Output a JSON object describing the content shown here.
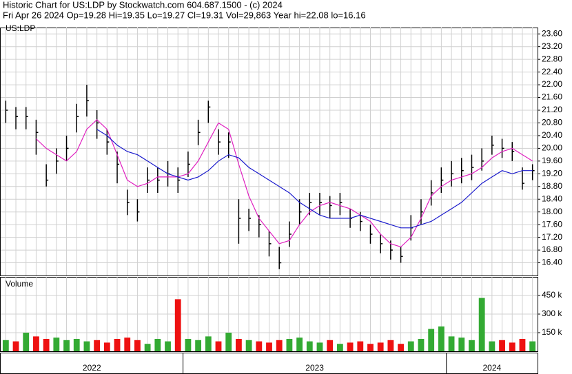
{
  "chart_data": {
    "type": "ohlc",
    "title": "Historic Chart for US:LDP by Stockwatch.com 604.687.1500 - (c) 2024",
    "subtitle": "Fri Apr 26 2024  Op=19.28  Hi=19.35  Lo=19.27  Cl=19.31  Vol=29,863  Year hi=22.08  lo=16.16",
    "symbol": "US:LDP",
    "volume_label": "Volume",
    "ylim": [
      16.0,
      23.8
    ],
    "yticks": [
      {
        "value": 16.4,
        "label": "16.40"
      },
      {
        "value": 16.8,
        "label": "16.80"
      },
      {
        "value": 17.2,
        "label": "17.20"
      },
      {
        "value": 17.6,
        "label": "17.60"
      },
      {
        "value": 18,
        "label": "18.00"
      },
      {
        "value": 18.4,
        "label": "18.40"
      },
      {
        "value": 18.8,
        "label": "18.80"
      },
      {
        "value": 19.2,
        "label": "19.20"
      },
      {
        "value": 19.6,
        "label": "19.60"
      },
      {
        "value": 20,
        "label": "20.00"
      },
      {
        "value": 20.4,
        "label": "20.40"
      },
      {
        "value": 20.8,
        "label": "20.80"
      },
      {
        "value": 21.2,
        "label": "21.20"
      },
      {
        "value": 21.6,
        "label": "21.60"
      },
      {
        "value": 22,
        "label": "22.00"
      },
      {
        "value": 22.4,
        "label": "22.40"
      },
      {
        "value": 22.8,
        "label": "22.80"
      },
      {
        "value": 23.2,
        "label": "23.20"
      },
      {
        "value": 23.6,
        "label": "23.60"
      }
    ],
    "volume_ylim": [
      0,
      600
    ],
    "volume_ticks": [
      {
        "value": 150,
        "label": "150 k"
      },
      {
        "value": 300,
        "label": "300 k"
      },
      {
        "value": 450,
        "label": "450 k"
      }
    ],
    "bar_color": "#000000",
    "up_color": "#33aa33",
    "down_color": "#ee1111",
    "ma_colors": [
      "#e020c0",
      "#1a1acc"
    ],
    "periods": [
      {
        "label": "2022",
        "high": [
          21.5,
          21.3,
          21.3,
          20.9,
          19.5,
          20.0,
          20.4,
          21.4,
          22.0,
          21.2,
          20.6,
          19.9,
          18.7,
          18.4,
          19.4,
          19.4,
          19.6,
          19.4
        ],
        "low": [
          20.8,
          20.6,
          20.6,
          19.8,
          18.8,
          19.2,
          19.6,
          20.5,
          21.0,
          20.3,
          19.8,
          18.9,
          17.9,
          17.7,
          18.6,
          18.6,
          18.8,
          18.6
        ],
        "close": [
          21.2,
          21.0,
          21.0,
          20.5,
          19.0,
          19.6,
          20.0,
          21.0,
          21.5,
          20.8,
          20.2,
          19.5,
          18.3,
          18.0,
          19.0,
          19.0,
          19.2,
          19.0
        ],
        "ma_fast": [
          null,
          null,
          null,
          20.3,
          20.0,
          19.8,
          19.6,
          19.9,
          20.6,
          20.9,
          20.6,
          19.8,
          19.0,
          18.8,
          18.9,
          19.1,
          19.1,
          19.1
        ],
        "ma_slow": [
          null,
          null,
          null,
          null,
          null,
          null,
          null,
          null,
          null,
          20.6,
          20.4,
          20.1,
          19.9,
          19.8,
          19.6,
          19.4,
          19.2,
          19.1
        ],
        "volume": [
          90,
          80,
          150,
          120,
          100,
          110,
          90,
          100,
          80,
          90,
          70,
          100,
          110,
          90,
          60,
          100,
          80,
          420
        ]
      },
      {
        "label": "2023",
        "high": [
          19.9,
          20.9,
          21.5,
          20.6,
          20.5,
          18.4,
          18.1,
          17.9,
          17.4,
          16.9,
          17.7,
          18.4,
          18.6,
          18.6,
          18.5,
          18.6,
          18.1,
          18.0,
          17.6,
          17.3,
          17.1,
          16.9,
          17.9,
          18.4,
          19.0,
          19.4
        ],
        "low": [
          19.1,
          20.1,
          20.8,
          19.8,
          19.7,
          17.0,
          17.4,
          17.2,
          16.6,
          16.2,
          16.9,
          17.6,
          17.9,
          17.9,
          17.8,
          17.9,
          17.5,
          17.4,
          17.0,
          16.7,
          16.5,
          16.4,
          17.1,
          17.6,
          18.2,
          18.6
        ],
        "close": [
          19.5,
          20.5,
          21.3,
          20.2,
          20.2,
          17.8,
          17.8,
          17.6,
          17.0,
          16.4,
          17.3,
          18.0,
          18.3,
          18.3,
          18.2,
          18.3,
          17.8,
          17.7,
          17.3,
          17.0,
          16.8,
          16.6,
          17.5,
          18.0,
          18.6,
          19.0
        ],
        "ma_fast": [
          19.2,
          19.6,
          20.2,
          20.8,
          20.6,
          19.5,
          18.5,
          17.8,
          17.4,
          17.0,
          17.1,
          17.6,
          18.0,
          18.2,
          18.3,
          18.2,
          18.1,
          17.9,
          17.7,
          17.3,
          17.0,
          16.9,
          17.2,
          17.8,
          18.5,
          18.8
        ],
        "ma_slow": [
          19.0,
          19.1,
          19.3,
          19.6,
          19.8,
          19.7,
          19.4,
          19.2,
          19.0,
          18.8,
          18.6,
          18.3,
          18.1,
          17.9,
          17.8,
          17.8,
          17.8,
          17.9,
          17.8,
          17.7,
          17.6,
          17.5,
          17.5,
          17.6,
          17.7,
          17.9
        ],
        "volume": [
          100,
          90,
          120,
          80,
          150,
          100,
          90,
          80,
          70,
          90,
          100,
          110,
          80,
          70,
          90,
          60,
          70,
          80,
          60,
          70,
          90,
          60,
          80,
          100,
          180,
          200
        ]
      },
      {
        "label": "2024",
        "high": [
          19.6,
          19.7,
          19.8,
          20.0,
          20.4,
          20.3,
          20.2,
          19.4,
          19.5
        ],
        "low": [
          18.8,
          18.9,
          19.0,
          19.3,
          19.8,
          19.7,
          19.6,
          18.7,
          19.0
        ],
        "close": [
          19.2,
          19.3,
          19.4,
          19.6,
          20.1,
          20.0,
          19.9,
          18.9,
          19.3
        ],
        "ma_fast": [
          19.0,
          19.1,
          19.2,
          19.4,
          19.7,
          19.9,
          20.0,
          19.8,
          19.6
        ],
        "ma_slow": [
          18.1,
          18.3,
          18.6,
          18.9,
          19.1,
          19.3,
          19.2,
          19.3,
          19.3
        ],
        "volume": [
          120,
          110,
          90,
          430,
          80,
          90,
          70,
          100,
          80
        ]
      }
    ]
  }
}
